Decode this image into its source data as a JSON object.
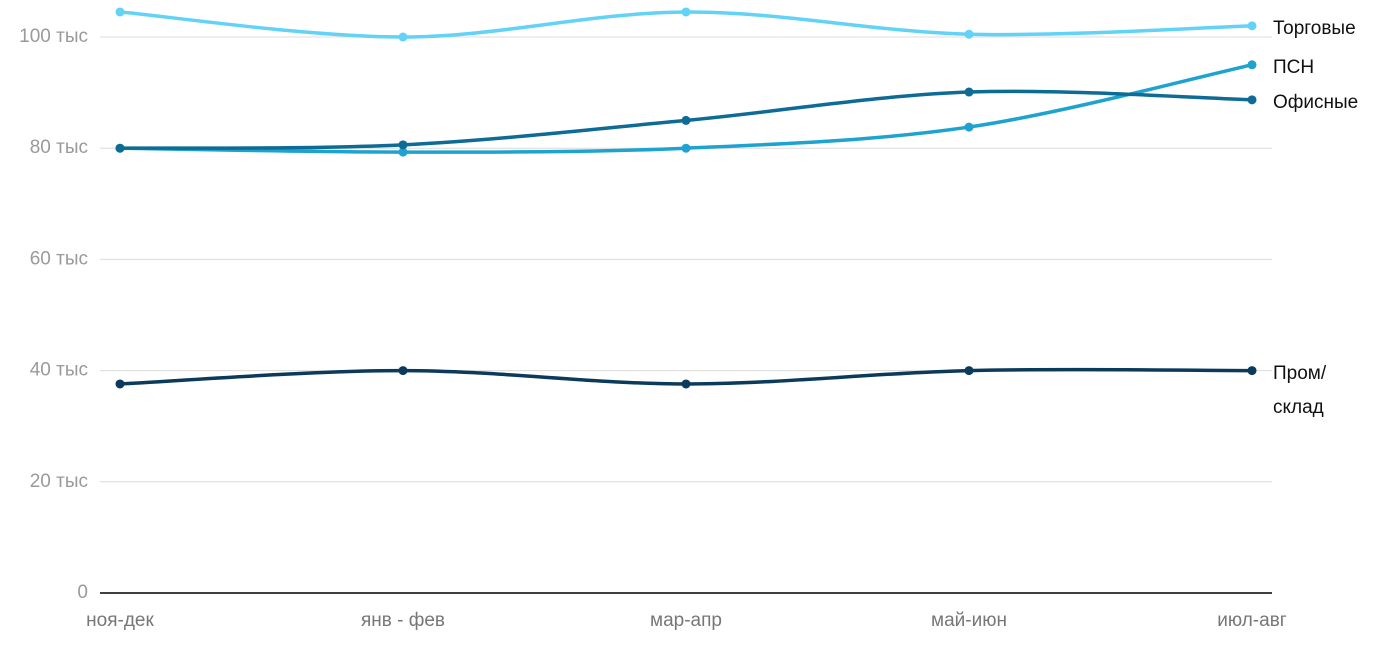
{
  "chart_data": {
    "type": "line",
    "categories": [
      "ноя-дек",
      "янв - фев",
      "мар-апр",
      "май-июн",
      "июл-авг"
    ],
    "series": [
      {
        "name": "Торговые",
        "color": "#62d2f7",
        "values": [
          104500,
          100000,
          104500,
          100500,
          102000
        ]
      },
      {
        "name": "ПСН",
        "color": "#1ea3d1",
        "values": [
          80000,
          79300,
          80000,
          83800,
          95000
        ]
      },
      {
        "name": "Офисные",
        "color": "#0e6b95",
        "values": [
          80000,
          80600,
          85000,
          90100,
          88700
        ]
      },
      {
        "name": "Пром/ склад",
        "color": "#0b3a5a",
        "values": [
          37600,
          40000,
          37600,
          40000,
          40000
        ]
      }
    ],
    "ylim": [
      0,
      105000
    ],
    "yticks": [
      {
        "value": 0,
        "label": "0"
      },
      {
        "value": 20000,
        "label": "20 тыс"
      },
      {
        "value": 40000,
        "label": "40 тыс"
      },
      {
        "value": 60000,
        "label": "60 тыс"
      },
      {
        "value": 80000,
        "label": "80 тыс"
      },
      {
        "value": 100000,
        "label": "100 тыс"
      }
    ],
    "grid": true
  }
}
